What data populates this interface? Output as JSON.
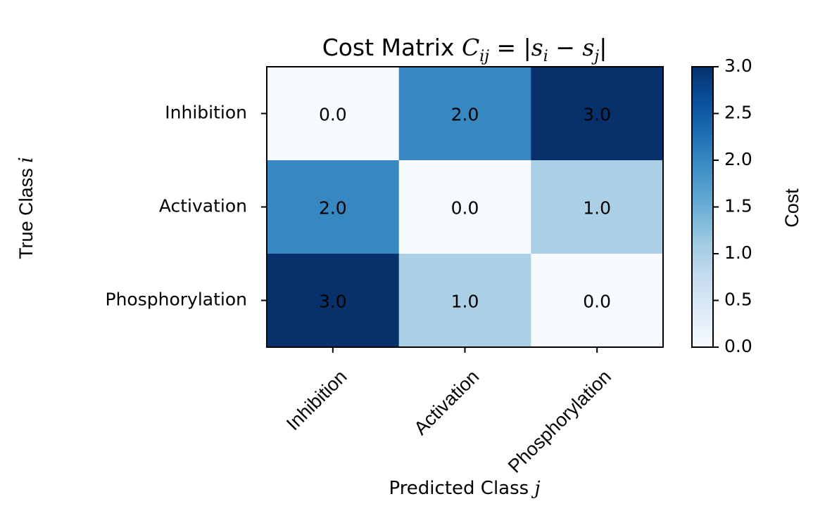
{
  "chart_data": {
    "type": "heatmap",
    "title": "Cost Matrix C_ij = |s_i − s_j|",
    "title_parts": {
      "prefix": "Cost Matrix ",
      "C": "C",
      "ij": "ij",
      "eq": " = |",
      "s1": "s",
      "i": "i",
      "minus": " − ",
      "s2": "s",
      "j": "j",
      "end": "|"
    },
    "xlabel": "Predicted Class j",
    "xlabel_parts": {
      "text": "Predicted Class ",
      "var": "j"
    },
    "ylabel": "True Class i",
    "ylabel_parts": {
      "text": "True Class ",
      "var": "i"
    },
    "x_categories": [
      "Inhibition",
      "Activation",
      "Phosphorylation"
    ],
    "y_categories": [
      "Inhibition",
      "Activation",
      "Phosphorylation"
    ],
    "values": [
      [
        0.0,
        2.0,
        3.0
      ],
      [
        2.0,
        0.0,
        1.0
      ],
      [
        3.0,
        1.0,
        0.0
      ]
    ],
    "cell_labels": [
      [
        "0.0",
        "2.0",
        "3.0"
      ],
      [
        "2.0",
        "0.0",
        "1.0"
      ],
      [
        "3.0",
        "1.0",
        "0.0"
      ]
    ],
    "colormap": "Blues",
    "colors": {
      "low": "#f7fbff",
      "high": "#08306b"
    },
    "colorbar": {
      "label": "Cost",
      "range": [
        0.0,
        3.0
      ],
      "ticks": [
        0.0,
        0.5,
        1.0,
        1.5,
        2.0,
        2.5,
        3.0
      ],
      "tick_labels": [
        "0.0",
        "0.5",
        "1.0",
        "1.5",
        "2.0",
        "2.5",
        "3.0"
      ]
    }
  }
}
